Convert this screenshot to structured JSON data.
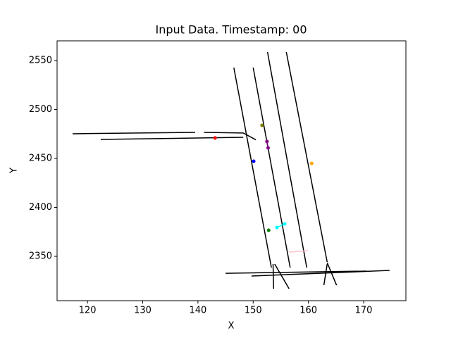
{
  "chart_data": {
    "type": "line",
    "title": "Input Data. Timestamp: 00",
    "x_label": "X",
    "y_label": "Y",
    "xlim": [
      114.5,
      177.65
    ],
    "ylim": [
      2304.7,
      2570.1
    ],
    "xticks": [
      120,
      130,
      140,
      150,
      160,
      170
    ],
    "yticks": [
      2350,
      2400,
      2450,
      2500,
      2550
    ],
    "grid": false,
    "series": [
      {
        "color": "#000000",
        "x": [
          117.3,
          139.5
        ],
        "values": [
          2475.2,
          2476.6
        ]
      },
      {
        "color": "#000000",
        "x": [
          122.4,
          148.2
        ],
        "values": [
          2469.4,
          2471.6
        ]
      },
      {
        "color": "#000000",
        "x": [
          141.1,
          148.2,
          150.5
        ],
        "values": [
          2476.6,
          2476.0,
          2469.0
        ]
      },
      {
        "color": "#000000",
        "x": [
          146.5,
          153.3
        ],
        "values": [
          2542.8,
          2338.5
        ]
      },
      {
        "color": "#000000",
        "x": [
          150.0,
          156.7
        ],
        "values": [
          2542.8,
          2338.5
        ]
      },
      {
        "color": "#000000",
        "x": [
          152.6,
          159.7
        ],
        "values": [
          2558.6,
          2338.5
        ]
      },
      {
        "color": "#000000",
        "x": [
          156.0,
          163.4
        ],
        "values": [
          2558.6,
          2344.2
        ]
      },
      {
        "color": "#000000",
        "x": [
          145.0,
          170.5
        ],
        "values": [
          2332.7,
          2334.9
        ]
      },
      {
        "color": "#000000",
        "x": [
          149.7,
          174.7
        ],
        "values": [
          2329.9,
          2335.6
        ]
      },
      {
        "color": "#000000",
        "x": [
          153.9,
          156.5
        ],
        "values": [
          2342.1,
          2316.9
        ]
      },
      {
        "color": "#000000",
        "x": [
          153.6,
          153.7
        ],
        "values": [
          2342.1,
          2316.9
        ]
      },
      {
        "color": "#000000",
        "x": [
          163.4,
          165.1
        ],
        "values": [
          2343.5,
          2320.5
        ]
      },
      {
        "color": "#000000",
        "x": [
          162.8,
          163.4
        ],
        "values": [
          2320.5,
          2342.1
        ]
      },
      {
        "color": "#ff0000",
        "x": [
          143.1
        ],
        "values": [
          2470.9
        ],
        "marker": true
      },
      {
        "color": "#808000",
        "x": [
          151.6
        ],
        "values": [
          2483.8
        ],
        "marker": true
      },
      {
        "color": "#800080",
        "x": [
          152.5,
          152.7
        ],
        "values": [
          2467.3,
          2460.8
        ],
        "marker": true
      },
      {
        "color": "#0000ff",
        "x": [
          150.1
        ],
        "values": [
          2447.1
        ],
        "marker": true
      },
      {
        "color": "#ffa500",
        "x": [
          160.6
        ],
        "values": [
          2444.9
        ],
        "marker": true
      },
      {
        "color": "#00ffff",
        "x": [
          154.3,
          155.7
        ],
        "values": [
          2379.5,
          2383.1
        ],
        "marker": true
      },
      {
        "color": "#008000",
        "x": [
          152.8
        ],
        "values": [
          2376.6
        ],
        "marker": true
      },
      {
        "color": "#ffc0cb",
        "x": [
          156.5,
          159.9
        ],
        "values": [
          2354.3,
          2355.8
        ]
      }
    ]
  }
}
